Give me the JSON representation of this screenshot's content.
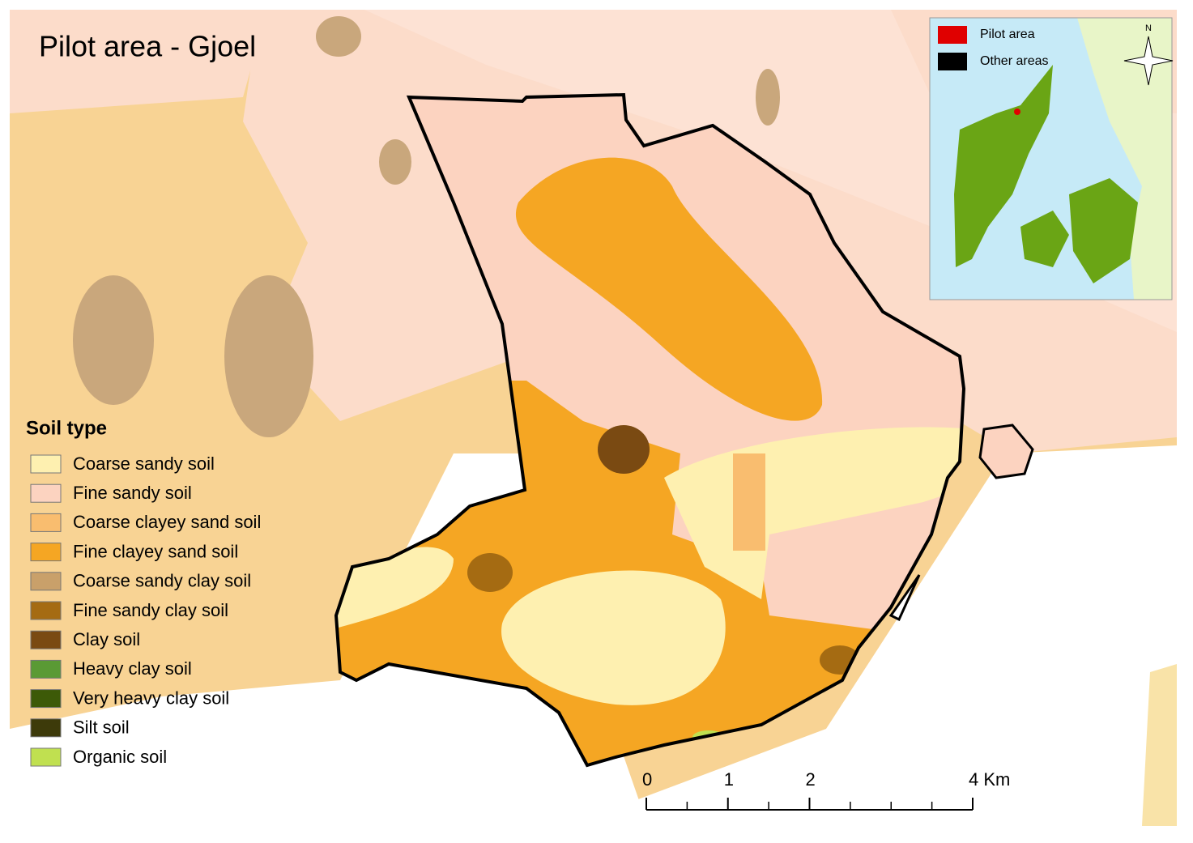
{
  "title": "Pilot area - Gjoel",
  "legend": {
    "title": "Soil type",
    "items": [
      {
        "label": "Coarse sandy soil",
        "color": "#fef0b0"
      },
      {
        "label": "Fine sandy soil",
        "color": "#fcd3c0"
      },
      {
        "label": "Coarse clayey sand soil",
        "color": "#f9bd6f"
      },
      {
        "label": "Fine clayey sand soil",
        "color": "#f5a623"
      },
      {
        "label": "Coarse sandy clay soil",
        "color": "#c9a06a"
      },
      {
        "label": "Fine sandy clay soil",
        "color": "#a56b12"
      },
      {
        "label": "Clay soil",
        "color": "#7a4a12"
      },
      {
        "label": "Heavy clay soil",
        "color": "#5a9a35"
      },
      {
        "label": "Very heavy clay soil",
        "color": "#3d5a08"
      },
      {
        "label": "Silt soil",
        "color": "#3d3a0a"
      },
      {
        "label": "Organic soil",
        "color": "#c0e050"
      }
    ]
  },
  "inset": {
    "legend": [
      {
        "label": "Pilot area",
        "color": "#e00000"
      },
      {
        "label": "Other areas",
        "color": "#000000"
      }
    ],
    "north": "N"
  },
  "scale_bar": {
    "ticks": [
      0,
      1,
      2,
      {
        "value": 4,
        "label": "4 Km"
      }
    ],
    "max": 4
  }
}
